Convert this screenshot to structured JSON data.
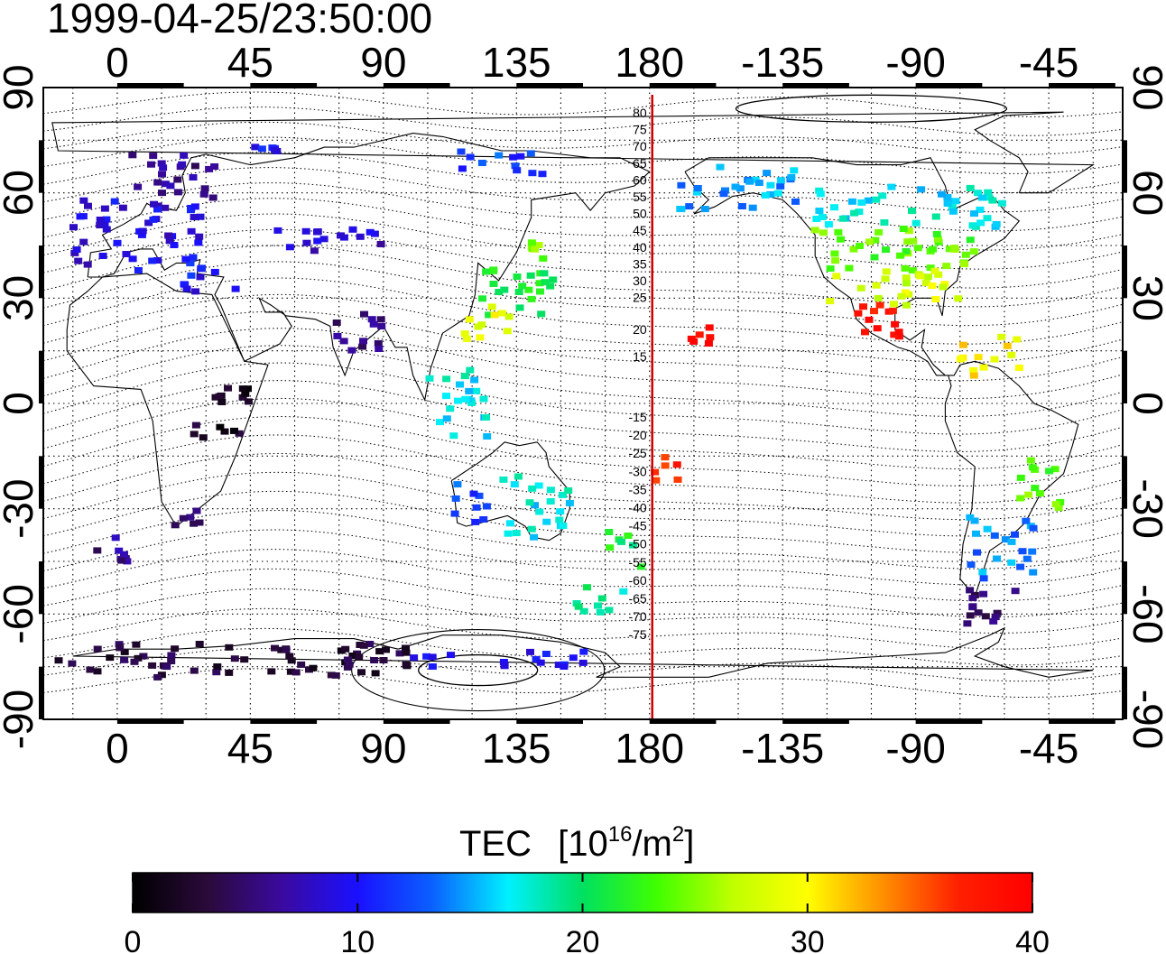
{
  "timestamp": "1999-04-25/23:50:00",
  "map": {
    "lon_ticks": [
      "0",
      "45",
      "90",
      "135",
      "180",
      "-135",
      "-90",
      "-45"
    ],
    "lat_ticks": [
      "90",
      "60",
      "30",
      "0",
      "-30",
      "-60",
      "-90"
    ],
    "lon_range": [
      -25,
      340
    ],
    "lat_range": [
      -90,
      90
    ],
    "grid": "dotted, every 15 degrees",
    "meridian_line": {
      "lon": 180,
      "color": "#cc0000"
    },
    "mlat_labels_north": [
      "80",
      "75",
      "70",
      "65",
      "60",
      "55",
      "50",
      "45",
      "40",
      "35",
      "30",
      "25",
      "20",
      "15"
    ],
    "mlat_labels_south": [
      "-15",
      "-20",
      "-25",
      "-30",
      "-35",
      "-40",
      "-45",
      "-50",
      "-55",
      "-60",
      "-65",
      "-70",
      "-75"
    ]
  },
  "colorbar": {
    "title": "TEC",
    "unit_prefix": "[10",
    "unit_exp1": "16",
    "unit_mid": "/m",
    "unit_exp2": "2",
    "unit_suffix": "]",
    "ticks": [
      "0",
      "10",
      "20",
      "30",
      "40"
    ],
    "range": [
      0,
      40
    ],
    "colormap": [
      "#000000",
      "#2a0a3a",
      "#3a0aa0",
      "#1a10ff",
      "#0a60ff",
      "#00f0ff",
      "#00e060",
      "#40ff00",
      "#c0ff00",
      "#ffff00",
      "#ff9000",
      "#ff2000",
      "#ff0000"
    ]
  },
  "tec_regions": [
    {
      "region": "europe-north",
      "lon": [
        5,
        35
      ],
      "lat": [
        58,
        72
      ],
      "tec": 6
    },
    {
      "region": "europe-central",
      "lon": [
        -15,
        30
      ],
      "lat": [
        38,
        58
      ],
      "tec": 9
    },
    {
      "region": "mediterranean",
      "lon": [
        20,
        40
      ],
      "lat": [
        32,
        42
      ],
      "tec": 10
    },
    {
      "region": "central-asia",
      "lon": [
        50,
        90
      ],
      "lat": [
        43,
        50
      ],
      "tec": 8
    },
    {
      "region": "siberia",
      "lon": [
        40,
        55
      ],
      "lat": [
        72,
        75
      ],
      "tec": 10
    },
    {
      "region": "india",
      "lon": [
        72,
        90
      ],
      "lat": [
        15,
        28
      ],
      "tec": 6
    },
    {
      "region": "africa",
      "lon": [
        25,
        45
      ],
      "lat": [
        -10,
        5
      ],
      "tec": 2
    },
    {
      "region": "south-africa",
      "lon": [
        18,
        30
      ],
      "lat": [
        -35,
        -28
      ],
      "tec": 6
    },
    {
      "region": "japan-north",
      "lon": [
        140,
        146
      ],
      "lat": [
        38,
        46
      ],
      "tec": 25
    },
    {
      "region": "japan-central",
      "lon": [
        120,
        148
      ],
      "lat": [
        25,
        40
      ],
      "tec": 21
    },
    {
      "region": "china-coast",
      "lon": [
        115,
        135
      ],
      "lat": [
        18,
        28
      ],
      "tec": 29
    },
    {
      "region": "southeast-asia",
      "lon": [
        105,
        125
      ],
      "lat": [
        -10,
        10
      ],
      "tec": 17
    },
    {
      "region": "east-siberia",
      "lon": [
        115,
        145
      ],
      "lat": [
        65,
        72
      ],
      "tec": 12
    },
    {
      "region": "australia-west",
      "lon": [
        113,
        125
      ],
      "lat": [
        -35,
        -22
      ],
      "tec": 12
    },
    {
      "region": "australia-east",
      "lon": [
        130,
        153
      ],
      "lat": [
        -38,
        -20
      ],
      "tec": 17
    },
    {
      "region": "new-zealand",
      "lon": [
        166,
        178
      ],
      "lat": [
        -47,
        -36
      ],
      "tec": 21
    },
    {
      "region": "pacific-south",
      "lon": [
        155,
        175
      ],
      "lat": [
        -60,
        -52
      ],
      "tec": 19
    },
    {
      "region": "hawaii",
      "lon": [
        194,
        203
      ],
      "lat": [
        17,
        24
      ],
      "tec": 39
    },
    {
      "region": "fiji",
      "lon": [
        180,
        190
      ],
      "lat": [
        -22,
        -15
      ],
      "tec": 37
    },
    {
      "region": "alaska",
      "lon": [
        190,
        230
      ],
      "lat": [
        55,
        68
      ],
      "tec": 15
    },
    {
      "region": "canada",
      "lon": [
        235,
        300
      ],
      "lat": [
        50,
        62
      ],
      "tec": 17
    },
    {
      "region": "usa-north",
      "lon": [
        235,
        295
      ],
      "lat": [
        38,
        50
      ],
      "tec": 24
    },
    {
      "region": "usa-south",
      "lon": [
        240,
        285
      ],
      "lat": [
        28,
        38
      ],
      "tec": 28
    },
    {
      "region": "mexico",
      "lon": [
        245,
        265
      ],
      "lat": [
        18,
        30
      ],
      "tec": 38
    },
    {
      "region": "caribbean",
      "lon": [
        285,
        305
      ],
      "lat": [
        8,
        20
      ],
      "tec": 30
    },
    {
      "region": "brazil",
      "lon": [
        305,
        320
      ],
      "lat": [
        -30,
        -15
      ],
      "tec": 24
    },
    {
      "region": "south-america",
      "lon": [
        288,
        310
      ],
      "lat": [
        -50,
        -32
      ],
      "tec": 14
    },
    {
      "region": "patagonia",
      "lon": [
        285,
        305
      ],
      "lat": [
        -63,
        -50
      ],
      "tec": 5
    },
    {
      "region": "antarctic-coast",
      "lon": [
        -20,
        100
      ],
      "lat": [
        -78,
        -68
      ],
      "tec": 3
    },
    {
      "region": "antarctic-peninsula",
      "lon": [
        100,
        160
      ],
      "lat": [
        -75,
        -70
      ],
      "tec": 9
    },
    {
      "region": "south-atlantic",
      "lon": [
        -15,
        5
      ],
      "lat": [
        -45,
        -38
      ],
      "tec": 6
    }
  ]
}
